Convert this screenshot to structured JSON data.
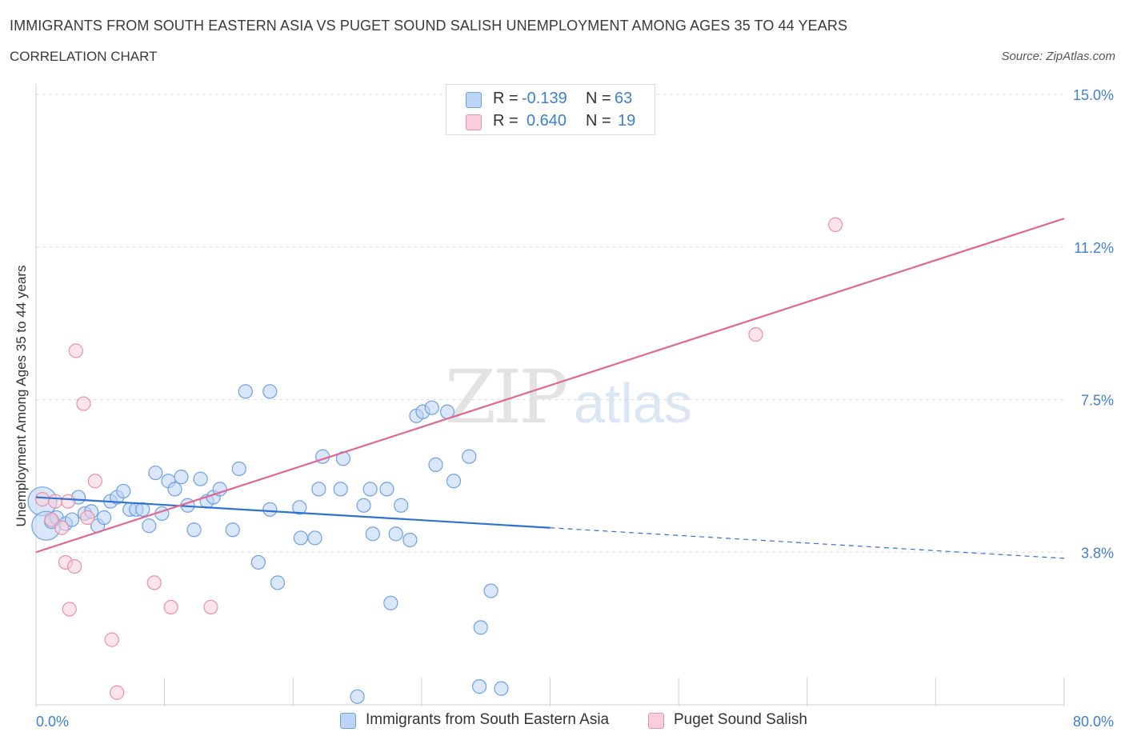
{
  "chart_data": {
    "type": "scatter",
    "title": "IMMIGRANTS FROM SOUTH EASTERN ASIA VS PUGET SOUND SALISH UNEMPLOYMENT AMONG AGES 35 TO 44 YEARS",
    "subtitle": "CORRELATION CHART",
    "source": "Source: ZipAtlas.com",
    "xlabel": "",
    "ylabel": "Unemployment Among Ages 35 to 44 years",
    "xlim": [
      0,
      80
    ],
    "ylim": [
      0,
      15
    ],
    "x_tick_labels": [
      "0.0%",
      "80.0%"
    ],
    "y_ticks": [
      {
        "value": 3.75,
        "label": "3.8%"
      },
      {
        "value": 7.5,
        "label": "7.5%"
      },
      {
        "value": 11.25,
        "label": "11.2%"
      },
      {
        "value": 15.0,
        "label": "15.0%"
      }
    ],
    "watermark": "ZIPatlas",
    "legend_position": "top-center",
    "series": [
      {
        "name": "Immigrants from South Eastern Asia",
        "color": "#6ea0e6",
        "fill": "#bcd4f5",
        "line_color": "#2f72d0",
        "R": "-0.139",
        "N": "63",
        "trend": {
          "x0": 0,
          "y0": 5.1,
          "x1": 40,
          "y1": 4.35,
          "dash_to_x": 80,
          "dash_to_y": 3.6
        },
        "points": [
          [
            0.5,
            5.0
          ],
          [
            0.8,
            4.4
          ],
          [
            1.2,
            4.5
          ],
          [
            1.6,
            4.6
          ],
          [
            2.3,
            4.45
          ],
          [
            2.8,
            4.55
          ],
          [
            3.3,
            5.1
          ],
          [
            3.8,
            4.7
          ],
          [
            4.3,
            4.75
          ],
          [
            4.8,
            4.4
          ],
          [
            5.3,
            4.6
          ],
          [
            5.8,
            5.0
          ],
          [
            6.3,
            5.1
          ],
          [
            6.8,
            5.25
          ],
          [
            7.3,
            4.8
          ],
          [
            7.8,
            4.8
          ],
          [
            8.3,
            4.8
          ],
          [
            8.8,
            4.4
          ],
          [
            9.3,
            5.7
          ],
          [
            9.8,
            4.7
          ],
          [
            10.3,
            5.5
          ],
          [
            10.8,
            5.3
          ],
          [
            11.3,
            5.6
          ],
          [
            11.8,
            4.9
          ],
          [
            12.3,
            4.3
          ],
          [
            12.8,
            5.55
          ],
          [
            13.3,
            5.0
          ],
          [
            13.8,
            5.1
          ],
          [
            14.3,
            5.3
          ],
          [
            15.3,
            4.3
          ],
          [
            15.8,
            5.8
          ],
          [
            16.3,
            7.7
          ],
          [
            17.3,
            3.5
          ],
          [
            18.2,
            4.8
          ],
          [
            18.8,
            3.0
          ],
          [
            18.2,
            7.7
          ],
          [
            20.5,
            4.85
          ],
          [
            20.6,
            4.1
          ],
          [
            21.7,
            4.1
          ],
          [
            22.0,
            5.3
          ],
          [
            22.3,
            6.1
          ],
          [
            23.7,
            5.3
          ],
          [
            23.9,
            6.05
          ],
          [
            25.0,
            0.2
          ],
          [
            25.5,
            4.9
          ],
          [
            26.0,
            5.3
          ],
          [
            26.2,
            4.2
          ],
          [
            27.3,
            5.3
          ],
          [
            27.6,
            2.5
          ],
          [
            28.0,
            4.2
          ],
          [
            28.4,
            4.9
          ],
          [
            29.1,
            4.05
          ],
          [
            29.6,
            7.1
          ],
          [
            30.1,
            7.2
          ],
          [
            30.8,
            7.3
          ],
          [
            31.1,
            5.9
          ],
          [
            32.0,
            7.2
          ],
          [
            32.5,
            5.5
          ],
          [
            33.7,
            6.1
          ],
          [
            34.5,
            0.45
          ],
          [
            34.6,
            1.9
          ],
          [
            35.4,
            2.8
          ],
          [
            36.2,
            0.4
          ]
        ],
        "point_sizes": {
          "large": [
            [
              0.5,
              5.0
            ],
            [
              0.8,
              4.4
            ]
          ]
        }
      },
      {
        "name": "Puget Sound Salish",
        "color": "#e890ab",
        "fill": "#f9cdd9",
        "line_color": "#e0688f",
        "R": "0.640",
        "N": "19",
        "trend": {
          "x0": 0,
          "y0": 3.75,
          "x1": 80,
          "y1": 11.95
        },
        "points": [
          [
            0.5,
            5.05
          ],
          [
            1.2,
            4.55
          ],
          [
            1.5,
            5.0
          ],
          [
            2.0,
            4.35
          ],
          [
            2.3,
            3.5
          ],
          [
            2.5,
            5.0
          ],
          [
            2.6,
            2.35
          ],
          [
            3.0,
            3.4
          ],
          [
            3.1,
            8.7
          ],
          [
            3.7,
            7.4
          ],
          [
            4.6,
            5.5
          ],
          [
            5.9,
            1.6
          ],
          [
            6.3,
            0.3
          ],
          [
            9.2,
            3.0
          ],
          [
            10.5,
            2.4
          ],
          [
            13.6,
            2.4
          ],
          [
            56.0,
            9.1
          ],
          [
            62.2,
            11.8
          ],
          [
            4.0,
            4.6
          ]
        ]
      }
    ]
  },
  "legend_top": {
    "rows": [
      {
        "r_label": "R =",
        "r_value": "-0.139",
        "n_label": "N =",
        "n_value": "63"
      },
      {
        "r_label": "R =",
        "r_value": "0.640",
        "n_label": "N =",
        "n_value": "19"
      }
    ]
  },
  "legend_bottom": {
    "items": [
      "Immigrants from South Eastern Asia",
      "Puget Sound Salish"
    ]
  }
}
